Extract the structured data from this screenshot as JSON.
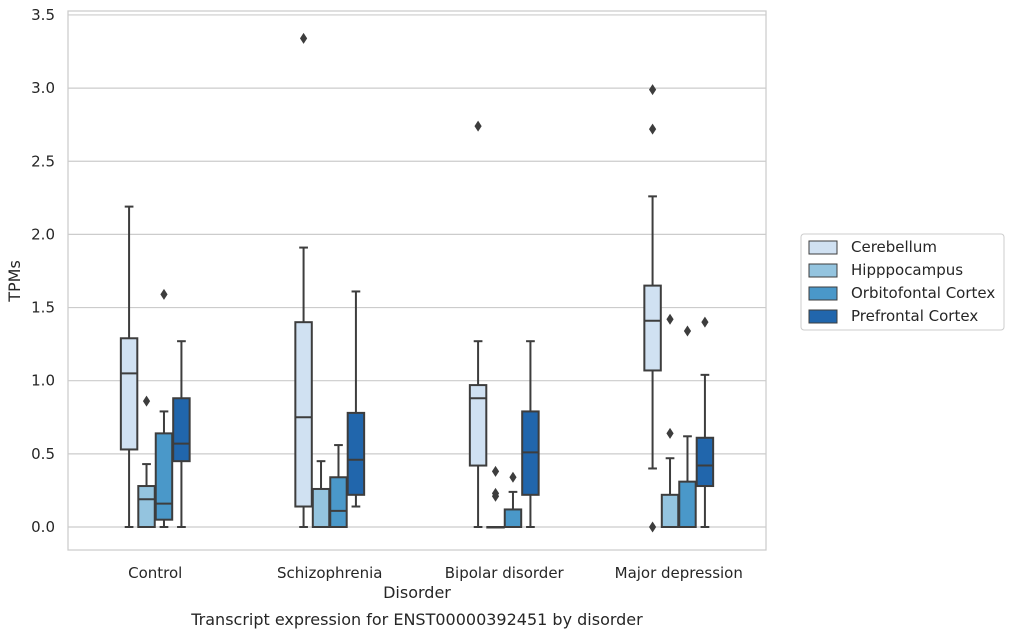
{
  "chart_data": {
    "type": "boxplot",
    "title": "Transcript expression for ENST00000392451 by disorder",
    "xlabel": "Disorder",
    "ylabel": "TPMs",
    "ylim": [
      -0.16,
      3.53
    ],
    "yticks": [
      0.0,
      0.5,
      1.0,
      1.5,
      2.0,
      2.5,
      3.0,
      3.5
    ],
    "ytick_labels": [
      "0.0",
      "0.5",
      "1.0",
      "1.5",
      "2.0",
      "2.5",
      "3.0",
      "3.5"
    ],
    "categories": [
      "Control",
      "Schizophrenia",
      "Bipolar disorder",
      "Major depression"
    ],
    "grid": true,
    "legend_position": "right",
    "series": [
      {
        "name": "Cerebellum",
        "color": "#d0e1f2",
        "boxes": [
          {
            "whislo": 0.0,
            "q1": 0.53,
            "med": 1.05,
            "q3": 1.29,
            "whishi": 2.19,
            "fliers": []
          },
          {
            "whislo": 0.0,
            "q1": 0.14,
            "med": 0.75,
            "q3": 1.4,
            "whishi": 1.91,
            "fliers": [
              3.34
            ]
          },
          {
            "whislo": 0.0,
            "q1": 0.42,
            "med": 0.88,
            "q3": 0.97,
            "whishi": 1.27,
            "fliers": [
              2.74
            ]
          },
          {
            "whislo": 0.4,
            "q1": 1.07,
            "med": 1.41,
            "q3": 1.65,
            "whishi": 2.26,
            "fliers": [
              0.0,
              2.72,
              2.99
            ]
          }
        ]
      },
      {
        "name": "Hipppocampus",
        "color": "#94c4df",
        "boxes": [
          {
            "whislo": 0.0,
            "q1": 0.0,
            "med": 0.19,
            "q3": 0.28,
            "whishi": 0.43,
            "fliers": [
              0.86
            ]
          },
          {
            "whislo": 0.0,
            "q1": 0.0,
            "med": 0.0,
            "q3": 0.26,
            "whishi": 0.45,
            "fliers": []
          },
          {
            "whislo": 0.0,
            "q1": 0.0,
            "med": 0.0,
            "q3": 0.0,
            "whishi": 0.0,
            "fliers": [
              0.21,
              0.23,
              0.38
            ]
          },
          {
            "whislo": 0.0,
            "q1": 0.0,
            "med": 0.0,
            "q3": 0.22,
            "whishi": 0.47,
            "fliers": [
              0.64,
              1.42
            ]
          }
        ]
      },
      {
        "name": "Orbitofontal Cortex",
        "color": "#4a98c9",
        "boxes": [
          {
            "whislo": 0.0,
            "q1": 0.05,
            "med": 0.16,
            "q3": 0.64,
            "whishi": 0.79,
            "fliers": [
              1.59
            ]
          },
          {
            "whislo": 0.0,
            "q1": 0.0,
            "med": 0.11,
            "q3": 0.34,
            "whishi": 0.56,
            "fliers": []
          },
          {
            "whislo": 0.0,
            "q1": 0.0,
            "med": 0.0,
            "q3": 0.12,
            "whishi": 0.24,
            "fliers": [
              0.34
            ]
          },
          {
            "whislo": 0.0,
            "q1": 0.0,
            "med": 0.0,
            "q3": 0.31,
            "whishi": 0.62,
            "fliers": [
              1.34
            ]
          }
        ]
      },
      {
        "name": "Prefrontal Cortex",
        "color": "#2166ac",
        "boxes": [
          {
            "whislo": 0.0,
            "q1": 0.45,
            "med": 0.57,
            "q3": 0.88,
            "whishi": 1.27,
            "fliers": []
          },
          {
            "whislo": 0.14,
            "q1": 0.22,
            "med": 0.46,
            "q3": 0.78,
            "whishi": 1.61,
            "fliers": []
          },
          {
            "whislo": 0.0,
            "q1": 0.22,
            "med": 0.51,
            "q3": 0.79,
            "whishi": 1.27,
            "fliers": []
          },
          {
            "whislo": 0.0,
            "q1": 0.28,
            "med": 0.42,
            "q3": 0.61,
            "whishi": 1.04,
            "fliers": [
              1.4
            ]
          }
        ]
      }
    ]
  }
}
